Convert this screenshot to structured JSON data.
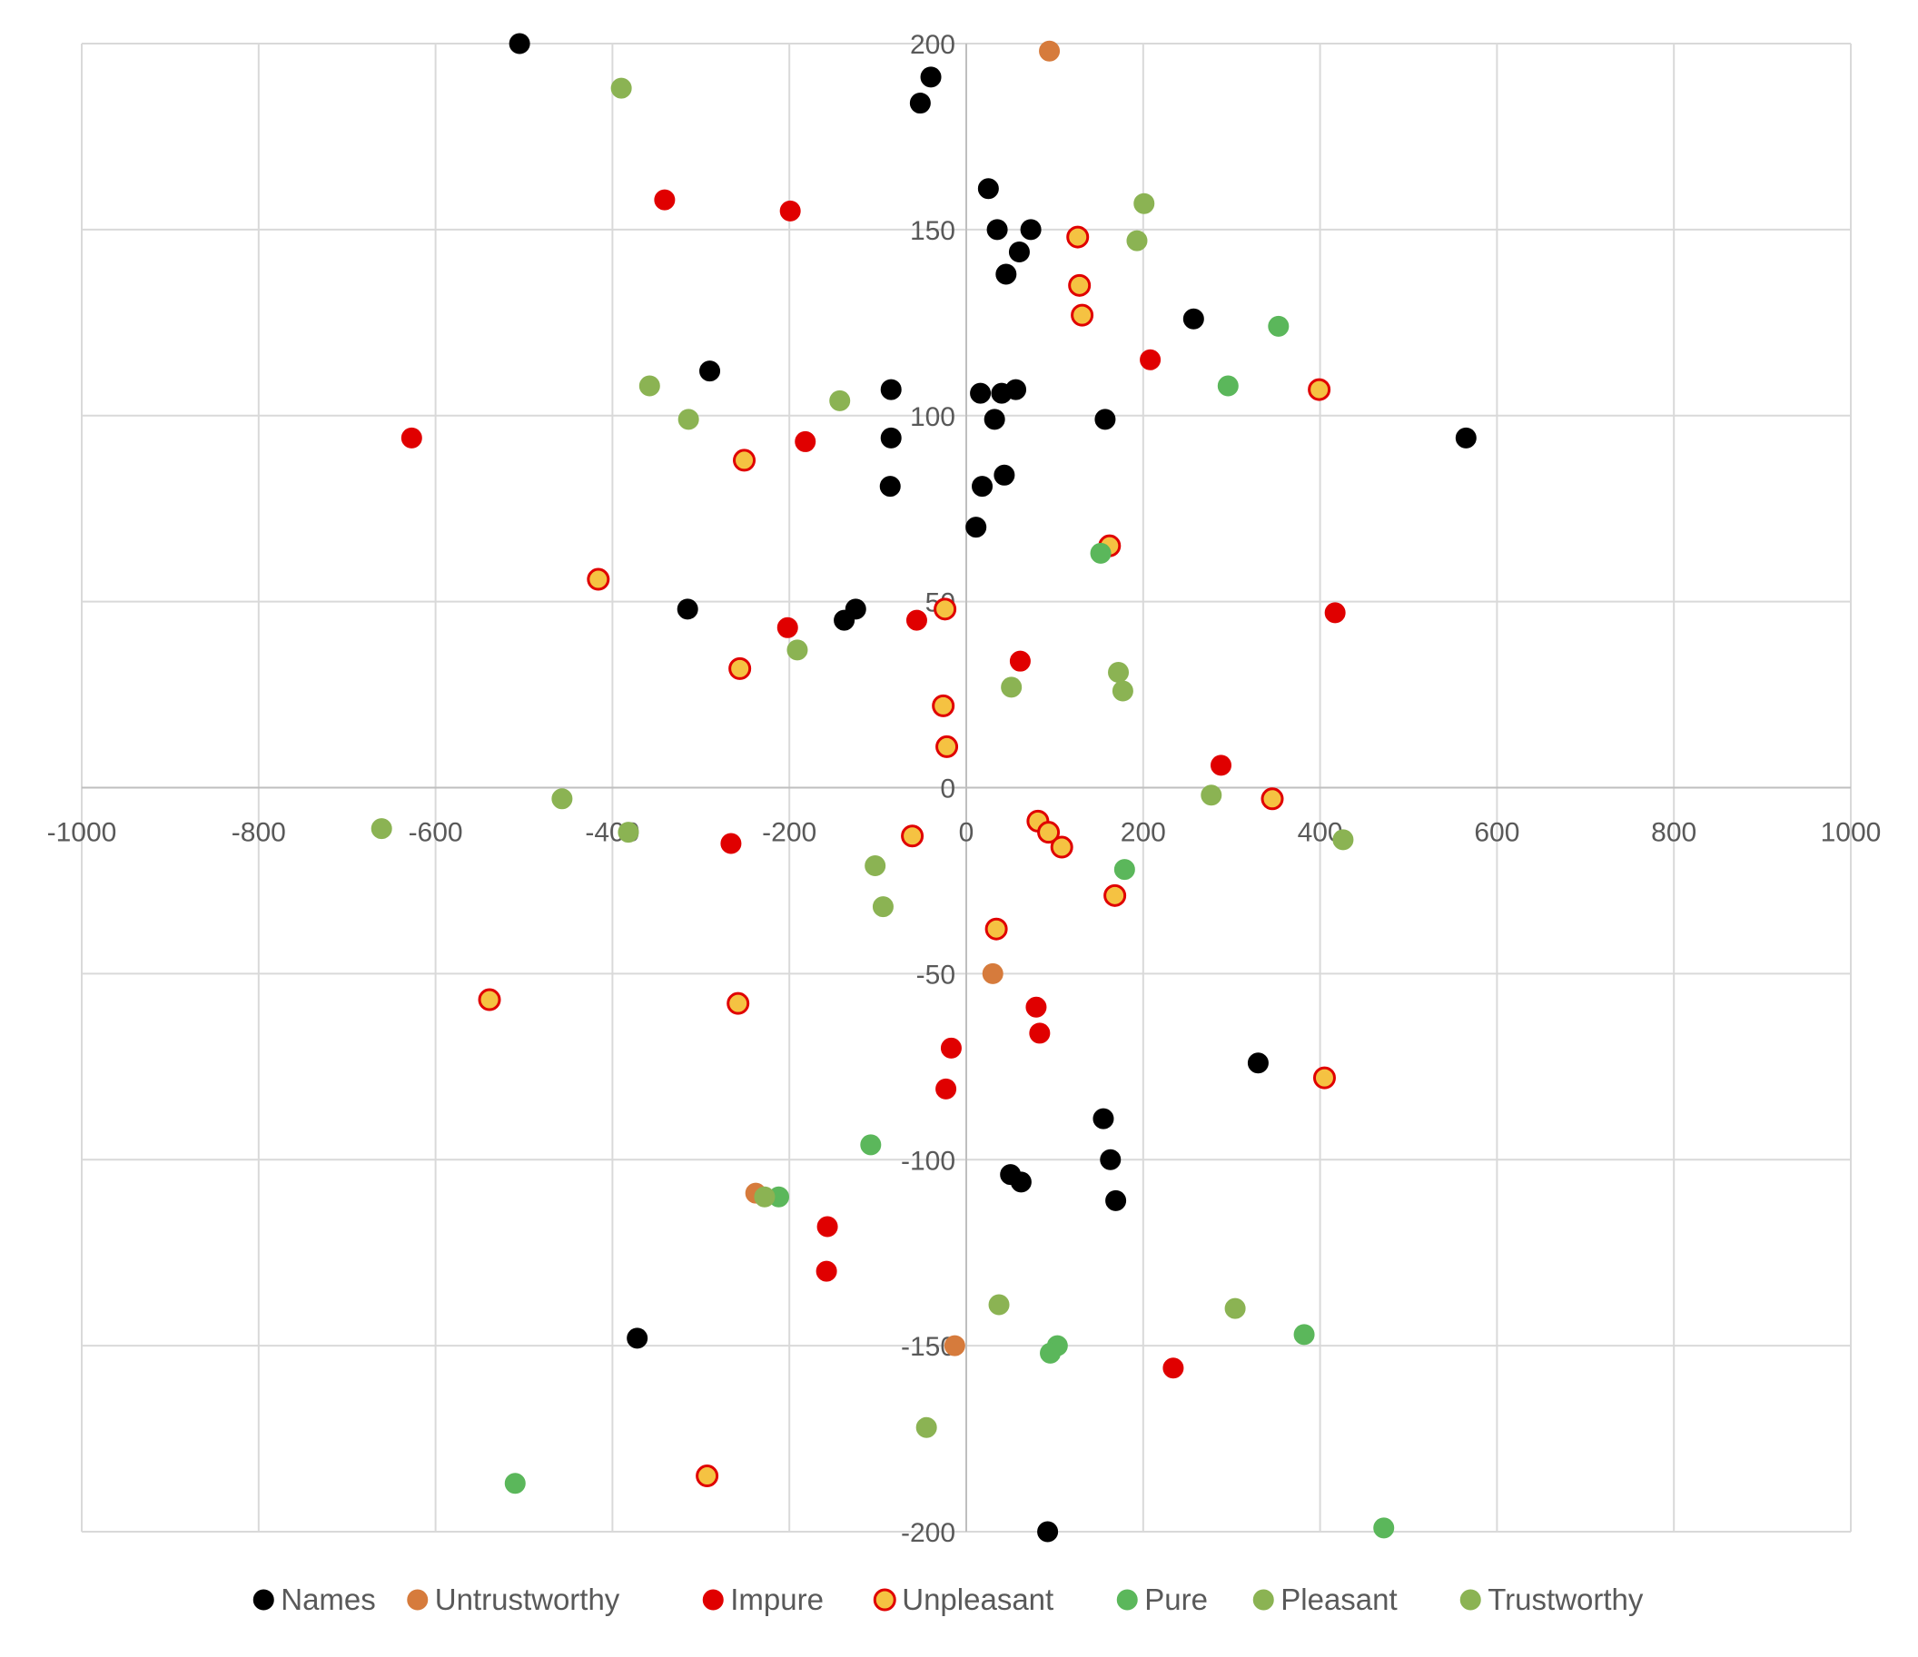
{
  "chart_data": {
    "type": "scatter",
    "title": "",
    "xlabel": "",
    "ylabel": "",
    "xlim": [
      -1000,
      1000
    ],
    "ylim": [
      -200,
      200
    ],
    "x_ticks": [
      -1000,
      -800,
      -600,
      -400,
      -200,
      0,
      200,
      400,
      600,
      800,
      1000
    ],
    "y_ticks": [
      -200,
      -150,
      -100,
      -50,
      0,
      50,
      100,
      150,
      200
    ],
    "x_tick_labels": [
      "-1000",
      "-800",
      "-600",
      "-400",
      "-200",
      "0",
      "200",
      "400",
      "600",
      "800",
      "1000"
    ],
    "y_tick_labels": [
      "-200",
      "-150",
      "-100",
      "-50",
      "0",
      "50",
      "100",
      "150",
      "200"
    ],
    "grid": true,
    "legend_position": "bottom",
    "series": [
      {
        "name": "Names",
        "fill": "#000000",
        "stroke": "#000000",
        "points": [
          [
            -505,
            200
          ],
          [
            -40,
            191
          ],
          [
            -52,
            184
          ],
          [
            25,
            161
          ],
          [
            35,
            150
          ],
          [
            73,
            150
          ],
          [
            60,
            144
          ],
          [
            45,
            138
          ],
          [
            257,
            126
          ],
          [
            -290,
            112
          ],
          [
            -85,
            107
          ],
          [
            16,
            106
          ],
          [
            40,
            106
          ],
          [
            56,
            107
          ],
          [
            32,
            99
          ],
          [
            157,
            99
          ],
          [
            565,
            94
          ],
          [
            -85,
            94
          ],
          [
            43,
            84
          ],
          [
            -86,
            81
          ],
          [
            18,
            81
          ],
          [
            11,
            70
          ],
          [
            -315,
            48
          ],
          [
            -125,
            48
          ],
          [
            -138,
            45
          ],
          [
            330,
            -74
          ],
          [
            155,
            -89
          ],
          [
            163,
            -100
          ],
          [
            50,
            -104
          ],
          [
            62,
            -106
          ],
          [
            169,
            -111
          ],
          [
            -372,
            -148
          ],
          [
            92,
            -200
          ]
        ]
      },
      {
        "name": "Untrustworthy",
        "fill": "#D67B3C",
        "stroke": "#D67B3C",
        "points": [
          [
            94,
            198
          ],
          [
            30,
            -50
          ],
          [
            -238,
            -109
          ],
          [
            -13,
            -150
          ]
        ]
      },
      {
        "name": "Impure",
        "fill": "#E00000",
        "stroke": "#E00000",
        "points": [
          [
            -341,
            158
          ],
          [
            -199,
            155
          ],
          [
            208,
            115
          ],
          [
            -627,
            94
          ],
          [
            -182,
            93
          ],
          [
            417,
            47
          ],
          [
            -56,
            45
          ],
          [
            -202,
            43
          ],
          [
            61,
            34
          ],
          [
            288,
            6
          ],
          [
            -266,
            -15
          ],
          [
            79,
            -59
          ],
          [
            83,
            -66
          ],
          [
            -17,
            -70
          ],
          [
            -23,
            -81
          ],
          [
            -157,
            -118
          ],
          [
            -158,
            -130
          ],
          [
            234,
            -156
          ]
        ]
      },
      {
        "name": "Unpleasant",
        "fill": "#F5C242",
        "stroke": "#E00000",
        "points": [
          [
            126,
            148
          ],
          [
            128,
            135
          ],
          [
            131,
            127
          ],
          [
            399,
            107
          ],
          [
            -251,
            88
          ],
          [
            162,
            65
          ],
          [
            -416,
            56
          ],
          [
            -24,
            48
          ],
          [
            -256,
            32
          ],
          [
            -26,
            22
          ],
          [
            -22,
            11
          ],
          [
            346,
            -3
          ],
          [
            81,
            -9
          ],
          [
            93,
            -12
          ],
          [
            -61,
            -13
          ],
          [
            108,
            -16
          ],
          [
            168,
            -29
          ],
          [
            34,
            -38
          ],
          [
            -539,
            -57
          ],
          [
            -258,
            -58
          ],
          [
            405,
            -78
          ],
          [
            -293,
            -185
          ]
        ]
      },
      {
        "name": "Pure",
        "fill": "#5BB75B",
        "stroke": "#5BB75B",
        "points": [
          [
            353,
            124
          ],
          [
            296,
            108
          ],
          [
            152,
            63
          ],
          [
            179,
            -22
          ],
          [
            -108,
            -96
          ],
          [
            -212,
            -110
          ],
          [
            382,
            -147
          ],
          [
            103,
            -150
          ],
          [
            95,
            -152
          ],
          [
            -510,
            -187
          ],
          [
            472,
            -199
          ]
        ]
      },
      {
        "name": "Pleasant",
        "fill": "#8BB353",
        "stroke": "#8BB353",
        "points": [
          [
            -390,
            188
          ],
          [
            201,
            157
          ],
          [
            193,
            147
          ],
          [
            -358,
            108
          ],
          [
            -143,
            104
          ],
          [
            -314,
            99
          ],
          [
            172,
            31
          ],
          [
            -191,
            37
          ],
          [
            51,
            27
          ],
          [
            177,
            26
          ],
          [
            277,
            -2
          ],
          [
            -457,
            -3
          ],
          [
            -661,
            -11
          ],
          [
            -382,
            -12
          ],
          [
            426,
            -14
          ],
          [
            -103,
            -21
          ],
          [
            -94,
            -32
          ],
          [
            -228,
            -110
          ],
          [
            37,
            -139
          ],
          [
            304,
            -140
          ],
          [
            -45,
            -172
          ]
        ]
      },
      {
        "name": "Trustworthy",
        "fill": "#8BB353",
        "stroke": "#8BB353",
        "points": []
      }
    ]
  }
}
